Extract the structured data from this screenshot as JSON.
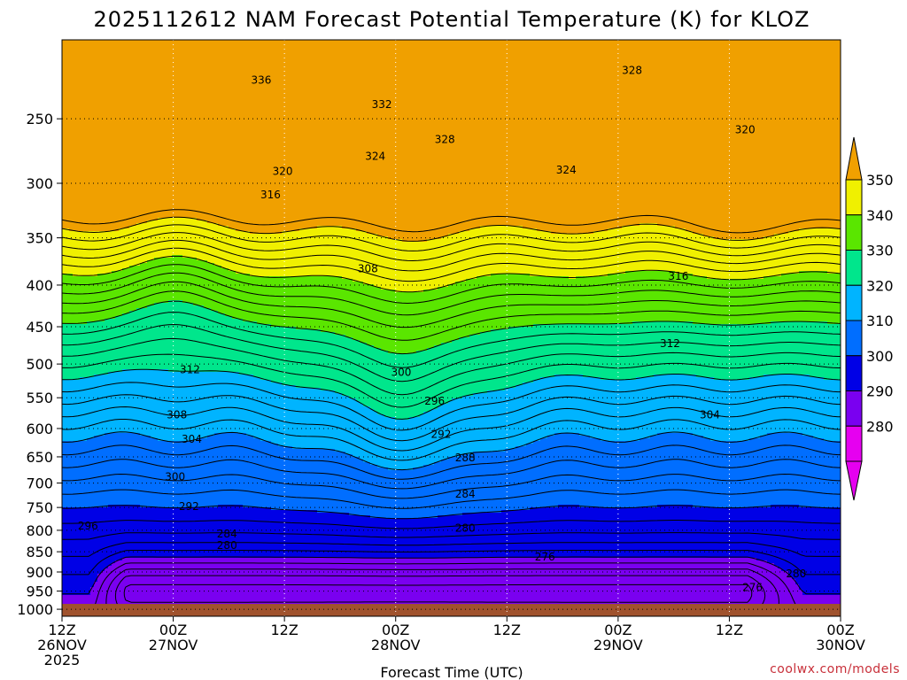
{
  "chart_data": {
    "type": "heatmap",
    "title": "2025112612 NAM Forecast Potential Temperature (K) for KLOZ",
    "xlabel": "Forecast Time (UTC)",
    "ylabel": "",
    "credit": "coolwx.com/models",
    "y_axis": {
      "scale": "log",
      "ylim": [
        1020,
        200
      ],
      "ticks": [
        250,
        300,
        350,
        400,
        450,
        500,
        550,
        600,
        650,
        700,
        750,
        800,
        850,
        900,
        950,
        1000
      ]
    },
    "x_axis": {
      "xlim": [
        0,
        84
      ],
      "ticks": [
        {
          "hour": 0,
          "line1": "12Z",
          "line2": "26NOV",
          "line3": "2025"
        },
        {
          "hour": 12,
          "line1": "00Z",
          "line2": "27NOV",
          "line3": ""
        },
        {
          "hour": 24,
          "line1": "12Z",
          "line2": "",
          "line3": ""
        },
        {
          "hour": 36,
          "line1": "00Z",
          "line2": "28NOV",
          "line3": ""
        },
        {
          "hour": 48,
          "line1": "12Z",
          "line2": "",
          "line3": ""
        },
        {
          "hour": 60,
          "line1": "00Z",
          "line2": "29NOV",
          "line3": ""
        },
        {
          "hour": 72,
          "line1": "12Z",
          "line2": "",
          "line3": ""
        },
        {
          "hour": 84,
          "line1": "00Z",
          "line2": "30NOV",
          "line3": ""
        }
      ]
    },
    "grid": true,
    "colorbar": {
      "labels": [
        "350",
        "340",
        "330",
        "320",
        "310",
        "300",
        "290",
        "280"
      ],
      "bands": [
        {
          "min": 340,
          "max": 350,
          "color": "#f0f000"
        },
        {
          "min": 330,
          "max": 340,
          "color": "#5ae600"
        },
        {
          "min": 320,
          "max": 330,
          "color": "#00e68c"
        },
        {
          "min": 310,
          "max": 320,
          "color": "#00b4ff"
        },
        {
          "min": 300,
          "max": 310,
          "color": "#006eff"
        },
        {
          "min": 290,
          "max": 300,
          "color": "#0000e6"
        },
        {
          "min": 280,
          "max": 290,
          "color": "#7a00f0"
        },
        {
          "min": 270,
          "max": 280,
          "color": "#e600f0"
        }
      ],
      "over_color": "#f0a000",
      "under_color": "#e600f0"
    },
    "ground_color": "#a0522d",
    "contour_interval": 2,
    "contour_labels": [
      {
        "hour": 21.5,
        "p": 224,
        "text": "336"
      },
      {
        "hour": 34.5,
        "p": 240,
        "text": "332"
      },
      {
        "hour": 41.3,
        "p": 265,
        "text": "328"
      },
      {
        "hour": 61.5,
        "p": 218,
        "text": "328"
      },
      {
        "hour": 33.8,
        "p": 278,
        "text": "324"
      },
      {
        "hour": 54.4,
        "p": 289,
        "text": "324"
      },
      {
        "hour": 23.8,
        "p": 290,
        "text": "320"
      },
      {
        "hour": 73.7,
        "p": 258,
        "text": "320"
      },
      {
        "hour": 22.5,
        "p": 310,
        "text": "316"
      },
      {
        "hour": 66.5,
        "p": 390,
        "text": "316"
      },
      {
        "hour": 33.0,
        "p": 382,
        "text": "308"
      },
      {
        "hour": 65.6,
        "p": 472,
        "text": "312"
      },
      {
        "hour": 13.8,
        "p": 508,
        "text": "312"
      },
      {
        "hour": 36.6,
        "p": 512,
        "text": "300"
      },
      {
        "hour": 12.4,
        "p": 577,
        "text": "308"
      },
      {
        "hour": 40.2,
        "p": 555,
        "text": "296"
      },
      {
        "hour": 14.0,
        "p": 618,
        "text": "304"
      },
      {
        "hour": 69.9,
        "p": 577,
        "text": "304"
      },
      {
        "hour": 40.9,
        "p": 610,
        "text": "292"
      },
      {
        "hour": 43.5,
        "p": 652,
        "text": "288"
      },
      {
        "hour": 12.2,
        "p": 688,
        "text": "300"
      },
      {
        "hour": 43.5,
        "p": 722,
        "text": "284"
      },
      {
        "hour": 13.7,
        "p": 748,
        "text": "292"
      },
      {
        "hour": 2.8,
        "p": 790,
        "text": "296"
      },
      {
        "hour": 17.8,
        "p": 808,
        "text": "284"
      },
      {
        "hour": 43.5,
        "p": 795,
        "text": "280"
      },
      {
        "hour": 17.8,
        "p": 835,
        "text": "280"
      },
      {
        "hour": 52.1,
        "p": 862,
        "text": "276"
      },
      {
        "hour": 79.2,
        "p": 905,
        "text": "280"
      },
      {
        "hour": 74.5,
        "p": 940,
        "text": "276"
      }
    ]
  }
}
